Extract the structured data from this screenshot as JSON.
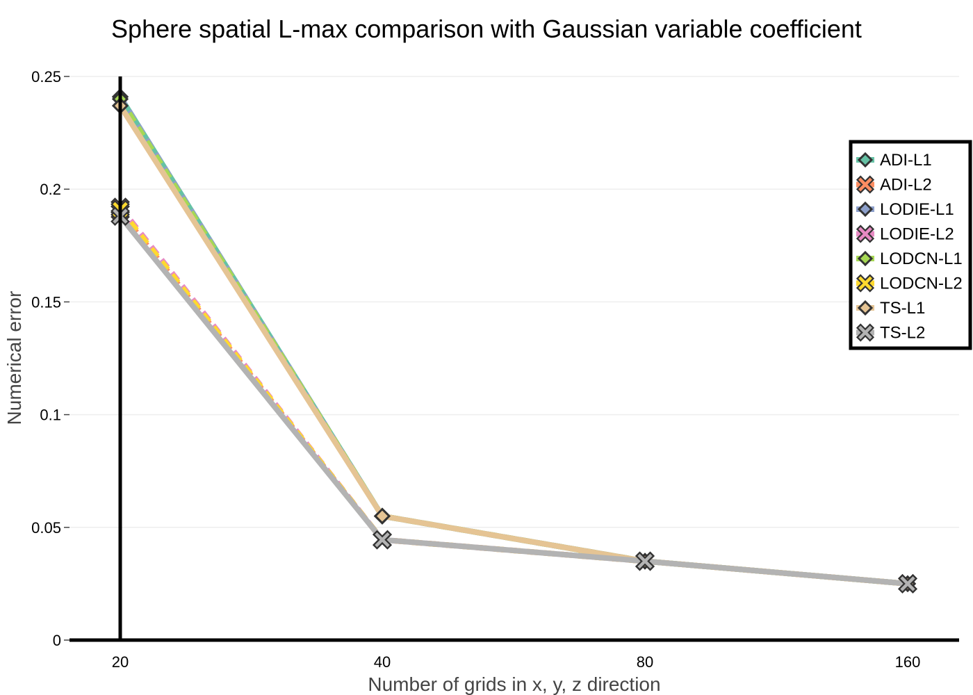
{
  "chart_data": {
    "type": "line",
    "title": "Sphere spatial L-max comparison with Gaussian variable coefficient",
    "xlabel": "Number of grids in x, y, z direction",
    "ylabel": "Numerical error",
    "categories": [
      "20",
      "40",
      "80",
      "160"
    ],
    "ylim": [
      0,
      0.25
    ],
    "yticks": [
      "0",
      "0.05",
      "0.1",
      "0.15",
      "0.2",
      "0.25"
    ],
    "ytick_values": [
      0,
      0.05,
      0.1,
      0.15,
      0.2,
      0.25
    ],
    "grid": true,
    "legend_position": "top-right",
    "series": [
      {
        "name": "ADI-L1",
        "color": "#66c2a5",
        "marker": "diamond",
        "dash": "solid",
        "values": [
          0.241,
          0.055,
          0.035,
          0.025
        ]
      },
      {
        "name": "ADI-L2",
        "color": "#fc8d62",
        "marker": "x",
        "dash": "dash",
        "values": [
          0.19,
          0.0445,
          0.035,
          0.025
        ]
      },
      {
        "name": "LODIE-L1",
        "color": "#8da0cb",
        "marker": "diamond",
        "dash": "dash",
        "values": [
          0.241,
          0.055,
          0.035,
          0.025
        ]
      },
      {
        "name": "LODIE-L2",
        "color": "#e78ac3",
        "marker": "x",
        "dash": "dash",
        "values": [
          0.192,
          0.0445,
          0.035,
          0.025
        ]
      },
      {
        "name": "LODCN-L1",
        "color": "#a6d854",
        "marker": "diamond",
        "dash": "dash",
        "values": [
          0.24,
          0.055,
          0.035,
          0.025
        ]
      },
      {
        "name": "LODCN-L2",
        "color": "#ffd92f",
        "marker": "x",
        "dash": "dash",
        "values": [
          0.191,
          0.0445,
          0.035,
          0.025
        ]
      },
      {
        "name": "TS-L1",
        "color": "#e5c494",
        "marker": "diamond",
        "dash": "solid",
        "values": [
          0.237,
          0.055,
          0.035,
          0.025
        ]
      },
      {
        "name": "TS-L2",
        "color": "#b3b3b3",
        "marker": "x",
        "dash": "solid",
        "values": [
          0.188,
          0.0445,
          0.035,
          0.025
        ]
      }
    ]
  }
}
